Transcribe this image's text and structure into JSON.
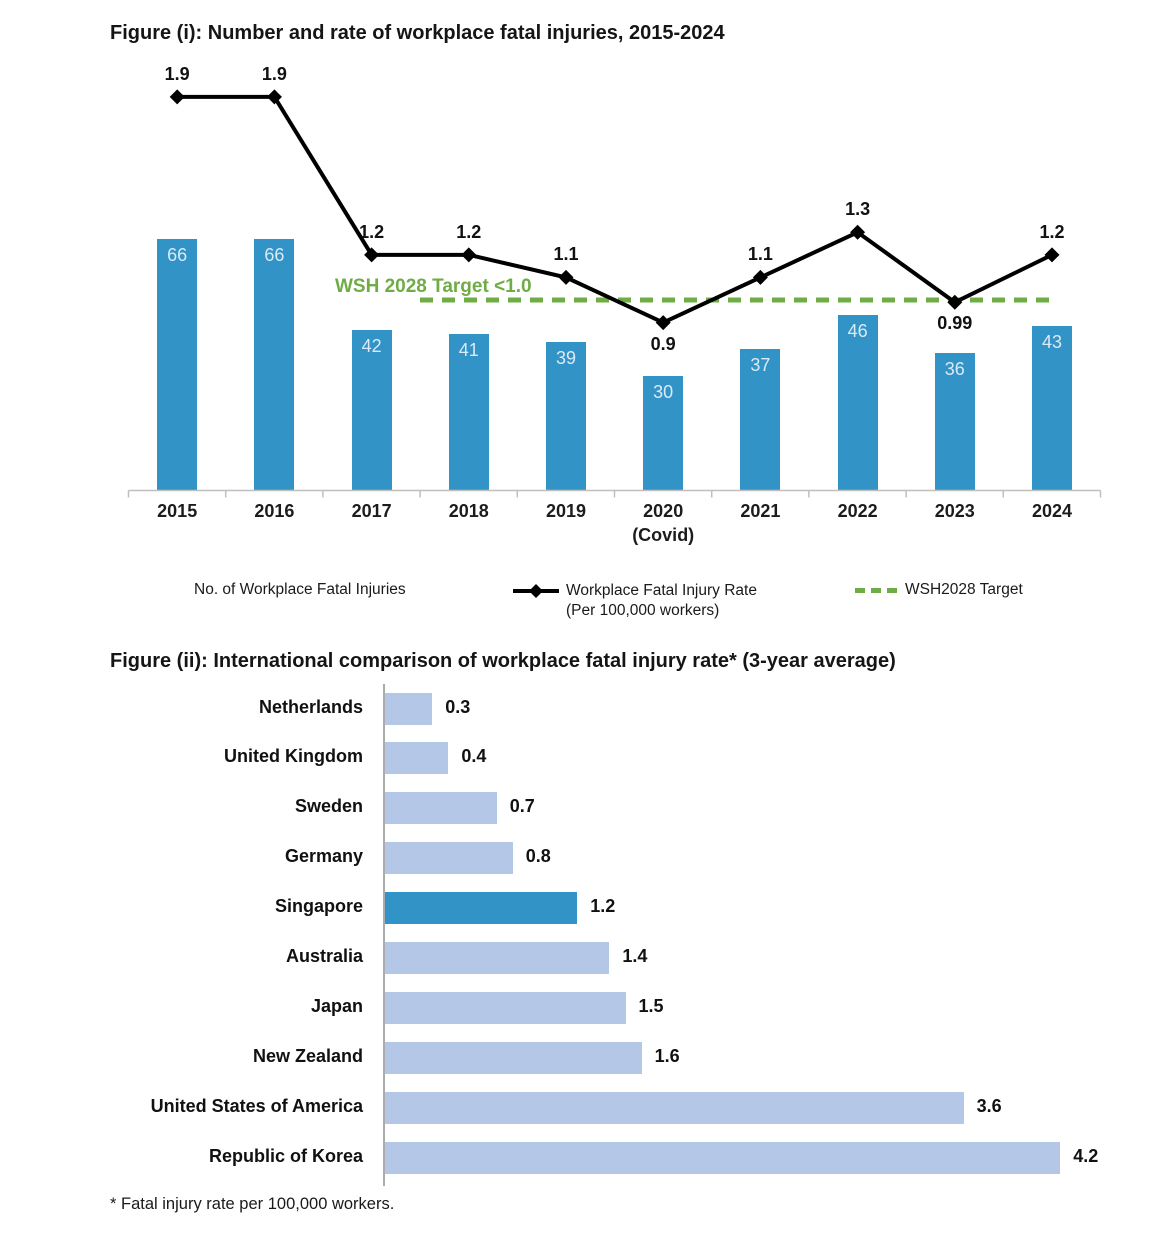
{
  "footnote": "* Fatal injury rate per 100,000 workers.",
  "colors": {
    "bar_blue": "#3293C6",
    "light_blue": "#B4C7E7",
    "target_green": "#6FAC46",
    "line_black": "#000000",
    "axis_gray": "#BFBFBF",
    "axis_gray_fig2": "#ABABAB",
    "bar_value_text": "#DCEAF6"
  },
  "chart_data": [
    {
      "type": "bar",
      "combo": "bar+line",
      "title": "Figure (i): Number and rate of workplace fatal injuries, 2015-2024",
      "categories": [
        "2015",
        "2016",
        "2017",
        "2018",
        "2019",
        "2020",
        "2021",
        "2022",
        "2023",
        "2024"
      ],
      "category_sublabels": [
        "",
        "",
        "",
        "",
        "",
        "(Covid)",
        "",
        "",
        "",
        ""
      ],
      "series": [
        {
          "name": "No. of Workplace Fatal Injuries",
          "type": "bar",
          "values": [
            66,
            66,
            42,
            41,
            39,
            30,
            37,
            46,
            36,
            43
          ]
        },
        {
          "name": "Workplace Fatal Injury Rate",
          "name_line2": "(Per 100,000 workers)",
          "type": "line",
          "values": [
            1.9,
            1.9,
            1.2,
            1.2,
            1.1,
            0.9,
            1.1,
            1.3,
            0.99,
            1.2
          ],
          "point_labels": [
            "1.9",
            "1.9",
            "1.2",
            "1.2",
            "1.1",
            "0.9",
            "1.1",
            "1.3",
            "0.99",
            "1.2"
          ],
          "label_position": [
            "above",
            "above",
            "above",
            "above",
            "above",
            "below",
            "above",
            "above",
            "below",
            "above"
          ]
        },
        {
          "name": "WSH2028 Target",
          "type": "target-line",
          "value": 1.0,
          "annotation": "WSH 2028 Target <1.0"
        }
      ],
      "legend_entries": [
        {
          "label": "No. of Workplace Fatal Injuries"
        },
        {
          "label": "Workplace Fatal Injury Rate",
          "sublabel": "(Per 100,000 workers)"
        },
        {
          "label": "WSH2028 Target"
        }
      ],
      "ylim_bars": [
        0,
        69
      ],
      "ylim_rate": [
        0.75,
        2.0
      ],
      "gridlines": false,
      "legend_position": "bottom"
    },
    {
      "type": "bar",
      "orientation": "horizontal",
      "title": "Figure (ii): International comparison of workplace fatal injury rate* (3-year average)",
      "categories": [
        "Netherlands",
        "United Kingdom",
        "Sweden",
        "Germany",
        "Singapore",
        "Australia",
        "Japan",
        "New Zealand",
        "United States of America",
        "Republic of Korea"
      ],
      "values": [
        0.3,
        0.4,
        0.7,
        0.8,
        1.2,
        1.4,
        1.5,
        1.6,
        3.6,
        4.2
      ],
      "value_labels": [
        "0.3",
        "0.4",
        "0.7",
        "0.8",
        "1.2",
        "1.4",
        "1.5",
        "1.6",
        "3.6",
        "4.2"
      ],
      "highlight_category": "Singapore",
      "xlim": [
        0,
        4.5
      ],
      "gridlines": false
    }
  ]
}
